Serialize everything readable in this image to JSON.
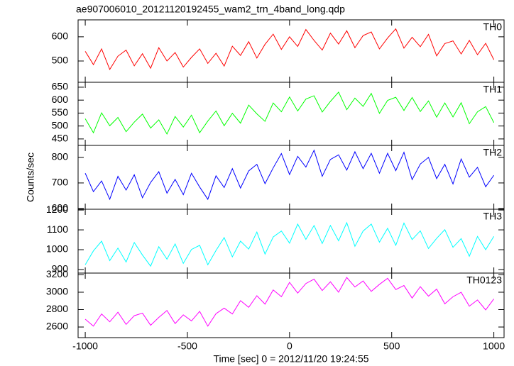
{
  "chart_data": [
    {
      "type": "line",
      "title": "ae907006010_20121120192455_wam2_trn_4band_long.qdp",
      "x": [
        -1000,
        -960,
        -920,
        -880,
        -840,
        -800,
        -760,
        -720,
        -680,
        -640,
        -600,
        -560,
        -520,
        -480,
        -440,
        -400,
        -360,
        -320,
        -280,
        -240,
        -200,
        -160,
        -120,
        -80,
        -40,
        0,
        40,
        80,
        120,
        160,
        200,
        240,
        280,
        320,
        360,
        400,
        440,
        480,
        520,
        560,
        600,
        640,
        680,
        720,
        760,
        800,
        840,
        880,
        920,
        960,
        1000
      ],
      "series": [
        {
          "name": "TH0",
          "color": "#ff0000",
          "values": [
            540,
            485,
            550,
            465,
            520,
            545,
            480,
            530,
            470,
            555,
            500,
            535,
            475,
            515,
            550,
            490,
            532,
            479,
            561,
            523,
            580,
            512,
            569,
            611,
            548,
            600,
            560,
            630,
            585,
            545,
            615,
            570,
            625,
            555,
            605,
            620,
            550,
            595,
            633,
            553,
            598,
            559,
            610,
            521,
            572,
            583,
            529,
            585,
            526,
            573,
            505
          ]
        }
      ],
      "xlim": [
        -1035,
        1050
      ],
      "ylim": [
        412,
        670
      ],
      "yticks": [
        500,
        600
      ]
    },
    {
      "type": "line",
      "x": [
        -1000,
        -960,
        -920,
        -880,
        -840,
        -800,
        -760,
        -720,
        -680,
        -640,
        -600,
        -560,
        -520,
        -480,
        -440,
        -400,
        -360,
        -320,
        -280,
        -240,
        -200,
        -160,
        -120,
        -80,
        -40,
        0,
        40,
        80,
        120,
        160,
        200,
        240,
        280,
        320,
        360,
        400,
        440,
        480,
        520,
        560,
        600,
        640,
        680,
        720,
        760,
        800,
        840,
        880,
        920,
        960,
        1000
      ],
      "series": [
        {
          "name": "TH1",
          "color": "#00ff00",
          "values": [
            528,
            474,
            551,
            501,
            533,
            478,
            515,
            546,
            492,
            524,
            469,
            537,
            496,
            542,
            474,
            519,
            558,
            501,
            549,
            511,
            581,
            547,
            518,
            589,
            555,
            612,
            558,
            604,
            617,
            554,
            595,
            631,
            563,
            608,
            576,
            626,
            549,
            599,
            611,
            560,
            610,
            556,
            597,
            534,
            589,
            535,
            590,
            509,
            555,
            575,
            513
          ]
        }
      ],
      "xlim": [
        -1035,
        1050
      ],
      "ylim": [
        425,
        669
      ],
      "yticks": [
        450,
        500,
        550,
        600,
        650
      ]
    },
    {
      "type": "line",
      "y_label": "Counts/sec",
      "x": [
        -1000,
        -960,
        -920,
        -880,
        -840,
        -800,
        -760,
        -720,
        -680,
        -640,
        -600,
        -560,
        -520,
        -480,
        -440,
        -400,
        -360,
        -320,
        -280,
        -240,
        -200,
        -160,
        -120,
        -80,
        -40,
        0,
        40,
        80,
        120,
        160,
        200,
        240,
        280,
        320,
        360,
        400,
        440,
        480,
        520,
        560,
        600,
        640,
        680,
        720,
        760,
        800,
        840,
        880,
        920,
        960,
        1000
      ],
      "series": [
        {
          "name": "TH2",
          "color": "#0000ff",
          "values": [
            738,
            666,
            708,
            636,
            726,
            672,
            732,
            642,
            702,
            744,
            660,
            714,
            654,
            738,
            684,
            636,
            728,
            682,
            756,
            680,
            747,
            773,
            697,
            759,
            815,
            733,
            804,
            762,
            828,
            726,
            792,
            810,
            750,
            822,
            756,
            816,
            738,
            816,
            748,
            820,
            713,
            774,
            800,
            717,
            773,
            696,
            794,
            723,
            761,
            685,
            730
          ]
        }
      ],
      "xlim": [
        -1035,
        1050
      ],
      "ylim": [
        597,
        847
      ],
      "yticks": [
        600,
        700,
        800
      ]
    },
    {
      "type": "line",
      "x": [
        -1000,
        -960,
        -920,
        -880,
        -840,
        -800,
        -760,
        -720,
        -680,
        -640,
        -600,
        -560,
        -520,
        -480,
        -440,
        -400,
        -360,
        -320,
        -280,
        -240,
        -200,
        -160,
        -120,
        -80,
        -40,
        0,
        40,
        80,
        120,
        160,
        200,
        240,
        280,
        320,
        360,
        400,
        440,
        480,
        520,
        560,
        600,
        640,
        680,
        720,
        760,
        800,
        840,
        880,
        920,
        960,
        1000
      ],
      "series": [
        {
          "name": "TH3",
          "color": "#00ffff",
          "values": [
            924,
            994,
            1043,
            945,
            1008,
            938,
            1036,
            973,
            917,
            1015,
            952,
            1029,
            931,
            1001,
            1022,
            924,
            996,
            1061,
            964,
            1043,
            1003,
            1089,
            978,
            1064,
            1094,
            1033,
            1129,
            1052,
            1122,
            1031,
            1122,
            1045,
            1136,
            1017,
            1094,
            1129,
            1038,
            1108,
            1022,
            1134,
            1051,
            1095,
            1006,
            1057,
            1101,
            1012,
            1056,
            967,
            1067,
            1000,
            1067
          ]
        }
      ],
      "xlim": [
        -1035,
        1050
      ],
      "ylim": [
        882,
        1204
      ],
      "yticks": [
        900,
        1000,
        1100,
        1200
      ]
    },
    {
      "type": "line",
      "x_label": "Time [sec] 0 = 2012/11/20 19:24:55",
      "x": [
        -1000,
        -960,
        -920,
        -880,
        -840,
        -800,
        -760,
        -720,
        -680,
        -640,
        -600,
        -560,
        -520,
        -480,
        -440,
        -400,
        -360,
        -320,
        -280,
        -240,
        -200,
        -160,
        -120,
        -80,
        -40,
        0,
        40,
        80,
        120,
        160,
        200,
        240,
        280,
        320,
        360,
        400,
        440,
        480,
        520,
        560,
        600,
        640,
        680,
        720,
        760,
        800,
        840,
        880,
        920,
        960,
        1000
      ],
      "series": [
        {
          "name": "TH0123",
          "color": "#ff00ff",
          "values": [
            2690,
            2610,
            2750,
            2660,
            2770,
            2630,
            2730,
            2760,
            2620,
            2710,
            2790,
            2640,
            2740,
            2670,
            2780,
            2610,
            2753,
            2817,
            2750,
            2903,
            2826,
            2960,
            2863,
            3026,
            2949,
            3113,
            2990,
            3100,
            3150,
            3020,
            3120,
            3000,
            3170,
            3060,
            3130,
            3010,
            3090,
            3160,
            3031,
            3077,
            2933,
            3064,
            2955,
            3036,
            2867,
            2948,
            2999,
            2840,
            2911,
            2797,
            2923
          ]
        }
      ],
      "xlim": [
        -1035,
        1050
      ],
      "ylim": [
        2478,
        3220
      ],
      "yticks": [
        2600,
        2800,
        3000,
        3200
      ],
      "xticks": [
        -1000,
        -500,
        0,
        500,
        1000
      ]
    }
  ]
}
